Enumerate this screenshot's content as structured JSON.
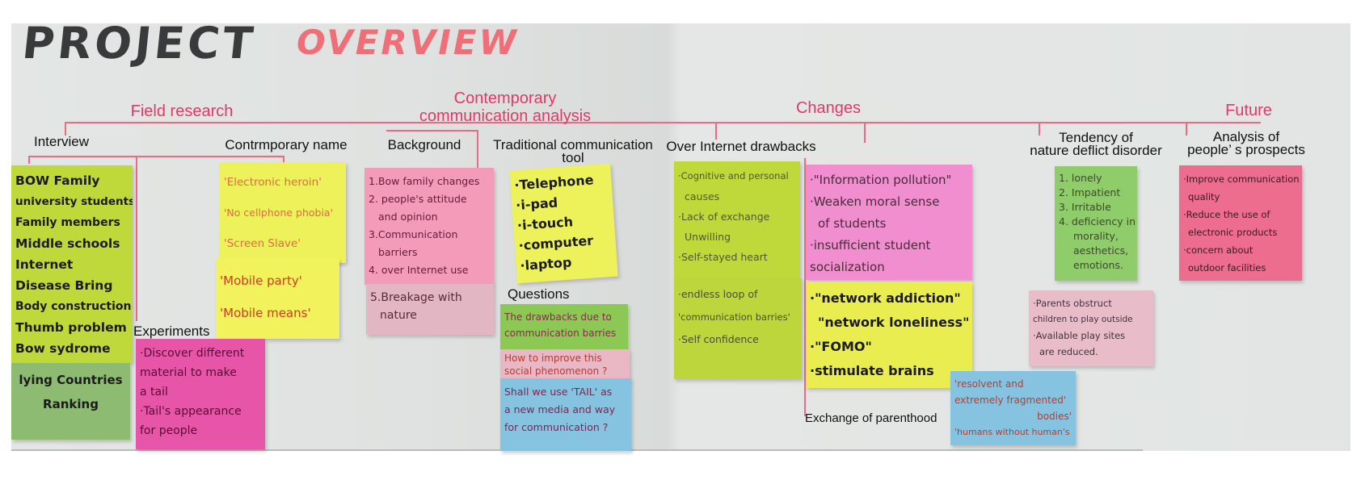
{
  "title": {
    "word1": "PROJECT",
    "word2": "OVERVIEW"
  },
  "sections": {
    "field_research": "Field research",
    "contemporary": [
      "Contemporary",
      "communication analysis"
    ],
    "changes": "Changes",
    "future": "Future"
  },
  "subheads": {
    "interview": "Interview",
    "contemporary_name": "Contrmporary name",
    "background": "Background",
    "traditional": [
      "Traditional communication",
      "tool"
    ],
    "internet_drawbacks": "Over Internet drawbacks",
    "nature_deficit": [
      "Tendency of",
      "nature deflict disorder"
    ],
    "prospects": [
      "Analysis of",
      "people’ s prospects"
    ],
    "experiments": "Experiments",
    "questions": "Questions",
    "parenthood": "Exchange of parenthood"
  },
  "colors": {
    "accent": "#e2386a",
    "lime": "#bfd83a",
    "yellow": "#eef25a",
    "pink": "#f39bb8",
    "magenta": "#e655a8",
    "green": "#8fcc6a",
    "blue": "#86c3e0",
    "lightpink": "#e9bcc9",
    "rose": "#ec6d8d"
  },
  "notes": {
    "interview_main": [
      "BOW Family",
      "university students",
      "Family members",
      "Middle schools",
      "Internet",
      "Disease Bring",
      "Body construction",
      "Thumb problem",
      "Bow sydrome"
    ],
    "interview_green": [
      "lying Countries",
      "Ranking"
    ],
    "contemporary_name_1": [
      "'Electronic heroin'",
      "'No cellphone phobia'",
      "'Screen  Slave'"
    ],
    "contemporary_name_2": [
      "'Mobile party'",
      "'Mobile means'"
    ],
    "experiments": [
      "·Discover different",
      "material to make",
      "a tail",
      "·Tail's appearance",
      "for people"
    ],
    "background_pink": [
      "1.Bow family changes",
      "2. people's attitude",
      "and opinion",
      "3.Communication",
      "barriers",
      "4. over Internet use"
    ],
    "background_light": [
      "5.Breakage with",
      "nature"
    ],
    "traditional": [
      "·Telephone",
      "·i-pad",
      "·i-touch",
      "·computer",
      "·laptop"
    ],
    "q_green": [
      "The drawbacks due to",
      "communication barries"
    ],
    "q_pink": [
      "How to improve this",
      "social phenomenon ?"
    ],
    "q_blue": [
      "Shall we use 'TAIL' as",
      "a new media and way",
      "for communication ?"
    ],
    "drawbacks_1": [
      "·Cognitive and personal",
      "causes",
      "·Lack of exchange",
      "Unwilling",
      "·Self-stayed heart"
    ],
    "drawbacks_2": [
      "·endless loop of",
      "'communication barries'",
      "·Self confidence"
    ],
    "changes_pink": [
      "·\"Information pollution\"",
      "·Weaken moral sense",
      "of students",
      "·insufficient student",
      "socialization"
    ],
    "changes_yellow": [
      "·\"network addiction\"",
      "\"network loneliness\"",
      "·\"FOMO\"",
      "·stimulate brains"
    ],
    "parenthood_blue": [
      "'resolvent and",
      "extremely fragmented'",
      "bodies'",
      "'humans without human's"
    ],
    "nature_green": [
      "1. lonely",
      "2. Impatient",
      "3. Irritable",
      "4. deficiency in",
      "morality,",
      "aesthetics,",
      "emotions."
    ],
    "nature_pink": [
      "·Parents obstruct",
      "children to play outside",
      "·Available play sites",
      "are reduced."
    ],
    "future_red": [
      "·Improve communication",
      "quality",
      "·Reduce the use of",
      "electronic products",
      "·concern about",
      "outdoor facilities"
    ]
  }
}
